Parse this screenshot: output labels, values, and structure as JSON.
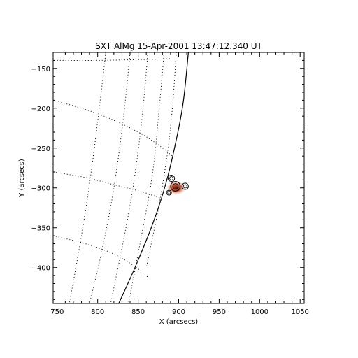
{
  "chart_data": {
    "type": "scatter",
    "title": "SXT AlMg 15-Apr-2001 13:47:12.340 UT",
    "xlabel": "X (arcsecs)",
    "ylabel": "Y (arcsecs)",
    "xlim": [
      745,
      1055
    ],
    "ylim": [
      -445,
      -130
    ],
    "xticks": [
      750,
      800,
      850,
      900,
      950,
      1000,
      1050
    ],
    "yticks": [
      -150,
      -200,
      -250,
      -300,
      -350,
      -400
    ],
    "limb": {
      "style": "solid",
      "points": [
        [
          912,
          -130
        ],
        [
          906,
          -190
        ],
        [
          897,
          -240
        ],
        [
          884,
          -295
        ],
        [
          868,
          -345
        ],
        [
          846,
          -400
        ],
        [
          826,
          -445
        ]
      ]
    },
    "latitude_lines": [
      [
        [
          745,
          -190
        ],
        [
          780,
          -200
        ],
        [
          815,
          -213
        ],
        [
          850,
          -230
        ],
        [
          875,
          -246
        ],
        [
          892,
          -260
        ]
      ],
      [
        [
          745,
          -280
        ],
        [
          785,
          -287
        ],
        [
          820,
          -296
        ],
        [
          855,
          -305
        ],
        [
          880,
          -314
        ]
      ],
      [
        [
          745,
          -360
        ],
        [
          785,
          -370
        ],
        [
          820,
          -383
        ],
        [
          845,
          -398
        ],
        [
          862,
          -412
        ]
      ],
      [
        [
          750,
          -140
        ],
        [
          800,
          -140
        ],
        [
          850,
          -139
        ],
        [
          890,
          -138
        ]
      ]
    ],
    "longitude_lines": [
      [
        [
          810,
          -130
        ],
        [
          802,
          -200
        ],
        [
          792,
          -280
        ],
        [
          780,
          -360
        ],
        [
          765,
          -445
        ]
      ],
      [
        [
          840,
          -130
        ],
        [
          832,
          -210
        ],
        [
          820,
          -300
        ],
        [
          806,
          -375
        ],
        [
          790,
          -445
        ]
      ],
      [
        [
          862,
          -130
        ],
        [
          855,
          -210
        ],
        [
          845,
          -290
        ],
        [
          833,
          -360
        ],
        [
          816,
          -445
        ]
      ],
      [
        [
          882,
          -130
        ],
        [
          876,
          -200
        ],
        [
          868,
          -280
        ],
        [
          855,
          -355
        ],
        [
          838,
          -445
        ]
      ],
      [
        [
          897,
          -130
        ],
        [
          893,
          -190
        ],
        [
          887,
          -250
        ],
        [
          876,
          -320
        ],
        [
          860,
          -400
        ]
      ]
    ],
    "source": {
      "center": [
        897,
        -300
      ],
      "color": "#c0401a",
      "contours": [
        {
          "cx": 891,
          "cy": -288,
          "r": 4
        },
        {
          "cx": 908,
          "cy": -298,
          "r": 4
        },
        {
          "cx": 888,
          "cy": -306,
          "r": 3
        },
        {
          "cx": 896,
          "cy": -298,
          "r": 6
        }
      ]
    }
  }
}
